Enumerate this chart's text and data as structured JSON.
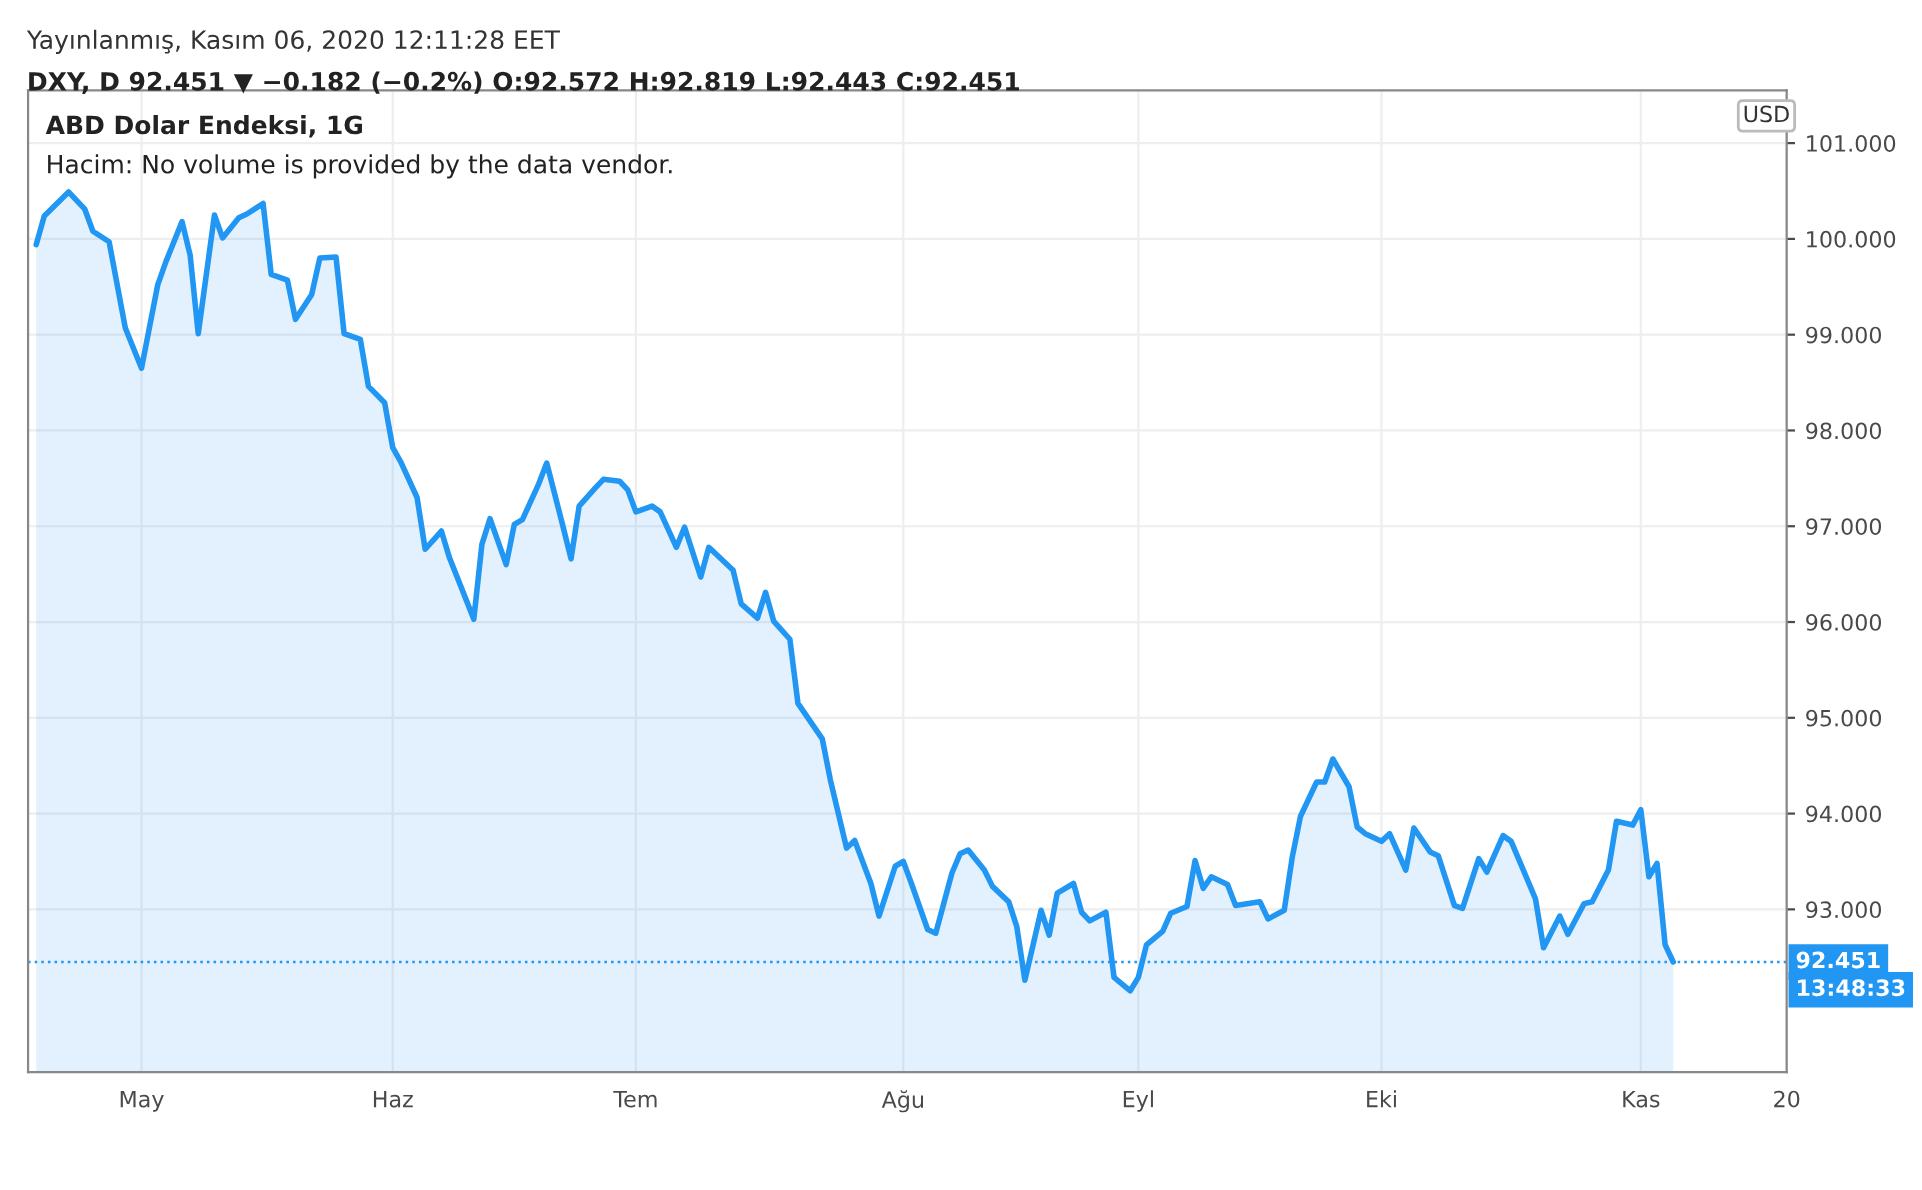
{
  "chart_data": {
    "type": "area",
    "title": "ABD Dolar Endeksi, 1G",
    "annotations": [
      "Yayınlanmış, Kasım 06, 2020 12:11:28 EET",
      "DXY, D 92.451 ▼ −0.182 (−0.2%) O:92.572 H:92.819 L:92.443 C:92.451",
      "Hacim: No volume is provided by the data vendor.",
      "USD",
      "13:48:33"
    ],
    "x": [
      "2020-04-18",
      "2020-04-19",
      "2020-04-22",
      "2020-04-24",
      "2020-04-25",
      "2020-04-27",
      "2020-04-29",
      "2020-05-01",
      "2020-05-03",
      "2020-05-04",
      "2020-05-06",
      "2020-05-07",
      "2020-05-08",
      "2020-05-10",
      "2020-05-11",
      "2020-05-13",
      "2020-05-14",
      "2020-05-16",
      "2020-05-17",
      "2020-05-19",
      "2020-05-20",
      "2020-05-22",
      "2020-05-23",
      "2020-05-25",
      "2020-05-26",
      "2020-05-28",
      "2020-05-29",
      "2020-05-31",
      "2020-06-01",
      "2020-06-02",
      "2020-06-04",
      "2020-06-05",
      "2020-06-07",
      "2020-06-08",
      "2020-06-11",
      "2020-06-12",
      "2020-06-13",
      "2020-06-15",
      "2020-06-16",
      "2020-06-17",
      "2020-06-19",
      "2020-06-20",
      "2020-06-22",
      "2020-06-23",
      "2020-06-24",
      "2020-06-26",
      "2020-06-27",
      "2020-06-29",
      "2020-06-30",
      "2020-07-01",
      "2020-07-03",
      "2020-07-04",
      "2020-07-06",
      "2020-07-07",
      "2020-07-09",
      "2020-07-10",
      "2020-07-13",
      "2020-07-14",
      "2020-07-16",
      "2020-07-17",
      "2020-07-18",
      "2020-07-20",
      "2020-07-21",
      "2020-07-24",
      "2020-07-25",
      "2020-07-27",
      "2020-07-28",
      "2020-07-30",
      "2020-07-31",
      "2020-08-02",
      "2020-08-03",
      "2020-08-04",
      "2020-08-06",
      "2020-08-07",
      "2020-08-09",
      "2020-08-10",
      "2020-08-11",
      "2020-08-13",
      "2020-08-14",
      "2020-08-16",
      "2020-08-17",
      "2020-08-18",
      "2020-08-20",
      "2020-08-21",
      "2020-08-22",
      "2020-08-24",
      "2020-08-25",
      "2020-08-26",
      "2020-08-28",
      "2020-08-29",
      "2020-08-31",
      "2020-09-01",
      "2020-09-02",
      "2020-09-04",
      "2020-09-05",
      "2020-09-07",
      "2020-09-08",
      "2020-09-09",
      "2020-09-10",
      "2020-09-12",
      "2020-09-13",
      "2020-09-16",
      "2020-09-17",
      "2020-09-19",
      "2020-09-20",
      "2020-09-21",
      "2020-09-23",
      "2020-09-24",
      "2020-09-25",
      "2020-09-27",
      "2020-09-28",
      "2020-09-29",
      "2020-10-01",
      "2020-10-02",
      "2020-10-04",
      "2020-10-05",
      "2020-10-07",
      "2020-10-08",
      "2020-10-10",
      "2020-10-11",
      "2020-10-13",
      "2020-10-14",
      "2020-10-16",
      "2020-10-17",
      "2020-10-20",
      "2020-10-21",
      "2020-10-23",
      "2020-10-24",
      "2020-10-26",
      "2020-10-27",
      "2020-10-29",
      "2020-10-30",
      "2020-11-01",
      "2020-11-02",
      "2020-11-03",
      "2020-11-04",
      "2020-11-05",
      "2020-11-06"
    ],
    "series": [
      {
        "color": "#2196f3",
        "values": [
          99.94,
          100.24,
          100.49,
          100.31,
          100.08,
          99.97,
          99.07,
          98.65,
          99.52,
          99.76,
          100.18,
          99.83,
          99.01,
          100.25,
          100.01,
          100.22,
          100.26,
          100.37,
          99.63,
          99.57,
          99.16,
          99.42,
          99.8,
          99.81,
          99.01,
          98.95,
          98.46,
          98.29,
          97.82,
          97.67,
          97.3,
          96.76,
          96.95,
          96.67,
          96.03,
          96.81,
          97.08,
          96.6,
          97.02,
          97.07,
          97.44,
          97.66,
          97.0,
          96.66,
          97.21,
          97.4,
          97.49,
          97.47,
          97.38,
          97.15,
          97.21,
          97.15,
          96.78,
          96.99,
          96.47,
          96.78,
          96.54,
          96.19,
          96.04,
          96.31,
          96.01,
          95.82,
          95.15,
          94.78,
          94.35,
          93.64,
          93.72,
          93.27,
          92.93,
          93.45,
          93.5,
          93.27,
          92.79,
          92.75,
          93.38,
          93.58,
          93.62,
          93.41,
          93.24,
          93.08,
          92.82,
          92.26,
          92.99,
          92.73,
          93.17,
          93.27,
          92.97,
          92.88,
          92.97,
          92.29,
          92.15,
          92.29,
          92.63,
          92.77,
          92.96,
          93.03,
          93.51,
          93.22,
          93.34,
          93.26,
          93.04,
          93.08,
          92.9,
          92.99,
          93.55,
          93.97,
          94.33,
          94.33,
          94.57,
          94.28,
          93.86,
          93.79,
          93.71,
          93.79,
          93.41,
          93.85,
          93.6,
          93.56,
          93.04,
          93.01,
          93.53,
          93.39,
          93.77,
          93.71,
          93.11,
          92.6,
          92.93,
          92.74,
          93.06,
          93.08,
          93.41,
          93.92,
          93.88,
          94.04,
          93.34,
          93.48,
          92.63,
          92.451
        ]
      }
    ],
    "xlim": [
      "2020-04-17",
      "2020-11-20"
    ],
    "xticks": [
      {
        "value": "2020-05-01",
        "label": "May"
      },
      {
        "value": "2020-06-01",
        "label": "Haz"
      },
      {
        "value": "2020-07-01",
        "label": "Tem"
      },
      {
        "value": "2020-08-03",
        "label": "Ağu"
      },
      {
        "value": "2020-09-01",
        "label": "Eyl"
      },
      {
        "value": "2020-10-01",
        "label": "Eki"
      },
      {
        "value": "2020-11-02",
        "label": "Kas"
      },
      {
        "value": "2020-11-20",
        "label": "20"
      }
    ],
    "ylim": [
      91.3,
      101.55
    ],
    "yticks": [
      {
        "value": 93,
        "label": "93.000"
      },
      {
        "value": 94,
        "label": "94.000"
      },
      {
        "value": 95,
        "label": "95.000"
      },
      {
        "value": 96,
        "label": "96.000"
      },
      {
        "value": 97,
        "label": "97.000"
      },
      {
        "value": 98,
        "label": "98.000"
      },
      {
        "value": 99,
        "label": "99.000"
      },
      {
        "value": 100,
        "label": "100.000"
      },
      {
        "value": 101,
        "label": "101.000"
      }
    ],
    "ref_lines": [
      {
        "axis": "y",
        "value": 92.451,
        "label": "92.451",
        "color": "#2196f3",
        "line_style": "dotted"
      }
    ],
    "grid": true,
    "legend": false,
    "line_style": "solid",
    "marker": "none"
  }
}
